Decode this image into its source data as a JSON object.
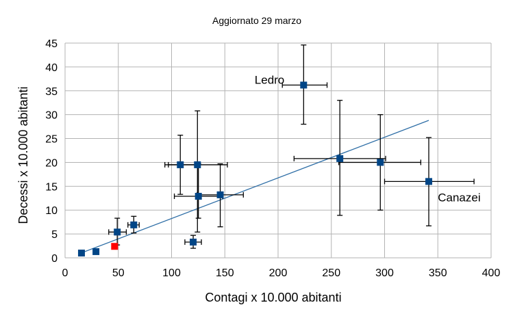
{
  "chart_data": {
    "type": "scatter",
    "title": "Aggiornato 29 marzo",
    "xlabel": "Contagi x 10.000 abitanti",
    "ylabel": "Decessi x 10.000 abitanti",
    "xlim": [
      0,
      400
    ],
    "ylim": [
      0,
      45
    ],
    "xticks": [
      "0",
      "50",
      "100",
      "150",
      "200",
      "250",
      "300",
      "350",
      "400"
    ],
    "yticks": [
      "0",
      "5",
      "10",
      "15",
      "20",
      "25",
      "30",
      "35",
      "40",
      "45"
    ],
    "grid": true,
    "colors": {
      "point": "#004586",
      "highlight": "#ff0000",
      "trend": "#2e6ea6",
      "grid": "#b3b3b3",
      "errorbar": "#000000"
    },
    "points": [
      {
        "x": 15.4,
        "y": 1.0,
        "xerr": [
          14,
          17
        ],
        "yerr": [
          0.6,
          1.4
        ]
      },
      {
        "x": 29,
        "y": 1.3,
        "xerr": [
          27,
          31
        ],
        "yerr": [
          0.9,
          1.7
        ]
      },
      {
        "x": 46.5,
        "y": 2.4,
        "xerr": [
          45,
          48
        ],
        "yerr": [
          1.9,
          2.9
        ],
        "highlight": true
      },
      {
        "x": 49,
        "y": 5.4,
        "xerr": [
          41,
          57.5
        ],
        "yerr": [
          2.7,
          8.3
        ]
      },
      {
        "x": 64.5,
        "y": 6.9,
        "xerr": [
          59,
          69.6
        ],
        "yerr": [
          5.2,
          8.7
        ]
      },
      {
        "x": 120.3,
        "y": 3.3,
        "xerr": [
          112.5,
          128
        ],
        "yerr": [
          2.0,
          4.7
        ]
      },
      {
        "x": 108.2,
        "y": 19.5,
        "xerr": [
          93.7,
          123
        ],
        "yerr": [
          13.3,
          25.7
        ]
      },
      {
        "x": 124.3,
        "y": 19.5,
        "xerr": [
          97,
          152.4
        ],
        "yerr": [
          5.4,
          30.8
        ]
      },
      {
        "x": 125.2,
        "y": 12.9,
        "xerr": [
          102.6,
          148
        ],
        "yerr": [
          8.3,
          19.7
        ]
      },
      {
        "x": 145.7,
        "y": 13.2,
        "xerr": [
          124,
          167.4
        ],
        "yerr": [
          6.5,
          19.7
        ]
      },
      {
        "x": 224,
        "y": 36.2,
        "xerr": [
          204,
          246
        ],
        "yerr": [
          28,
          44.6
        ]
      },
      {
        "x": 258,
        "y": 20.8,
        "xerr": [
          215,
          301
        ],
        "yerr": [
          8.9,
          33
        ]
      },
      {
        "x": 296,
        "y": 20,
        "xerr": [
          257,
          334
        ],
        "yerr": [
          10,
          30
        ]
      },
      {
        "x": 341.5,
        "y": 16,
        "xerr": [
          300,
          384
        ],
        "yerr": [
          6.7,
          25.2
        ]
      }
    ],
    "trendline": {
      "x": [
        15,
        341.5
      ],
      "y": [
        1.0,
        28.8
      ]
    },
    "annotations": [
      {
        "text": "Ledro",
        "x": 178,
        "y": 36.5
      },
      {
        "text": "Canazei",
        "x": 350,
        "y": 11.8
      }
    ]
  }
}
